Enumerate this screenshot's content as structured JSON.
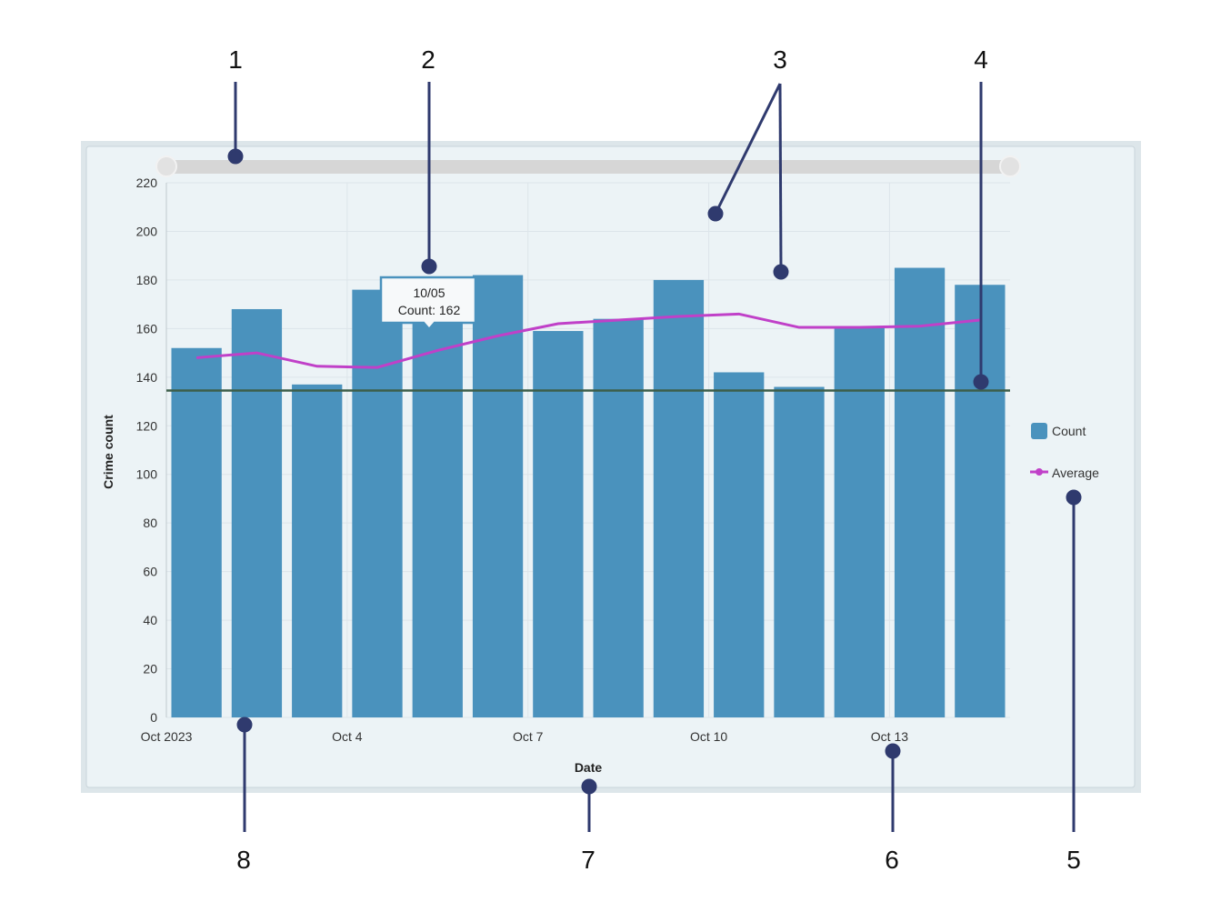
{
  "chart_data": {
    "type": "bar",
    "xlabel": "Date",
    "ylabel": "Crime count",
    "ylim": [
      0,
      220
    ],
    "yticks": [
      "0",
      "20",
      "40",
      "60",
      "80",
      "100",
      "120",
      "140",
      "160",
      "180",
      "200",
      "220"
    ],
    "categories": [
      "10/01",
      "10/02",
      "10/03",
      "10/04",
      "10/05",
      "10/06",
      "10/07",
      "10/08",
      "10/09",
      "10/10",
      "10/11",
      "10/12",
      "10/13",
      "10/14"
    ],
    "xtick_labels": [
      {
        "category": "10/01",
        "label": "Oct 2023"
      },
      {
        "category": "10/04",
        "label": "Oct 4"
      },
      {
        "category": "10/07",
        "label": "Oct 7"
      },
      {
        "category": "10/10",
        "label": "Oct 10"
      },
      {
        "category": "10/13",
        "label": "Oct 13"
      }
    ],
    "series": [
      {
        "name": "Count",
        "type": "bar",
        "color": "#4a92bd",
        "values": [
          152,
          168,
          137,
          176,
          162,
          182,
          159,
          164,
          180,
          142,
          136,
          161,
          185,
          178
        ]
      },
      {
        "name": "Average",
        "type": "line",
        "color": "#c040c8",
        "values": [
          148,
          150,
          144.5,
          144,
          151,
          157,
          162,
          163.5,
          165,
          166,
          160.5,
          160.5,
          161,
          163.5
        ]
      }
    ],
    "reference_line": {
      "value": 134.5,
      "color": "#3d5e4a"
    },
    "grid": true,
    "legend": "right",
    "tooltip": {
      "title": "10/05",
      "text": "Count: 162"
    },
    "range_slider": {
      "start": 0,
      "end": 1
    }
  },
  "annotations": [
    "1",
    "2",
    "3",
    "4",
    "5",
    "6",
    "7",
    "8"
  ]
}
